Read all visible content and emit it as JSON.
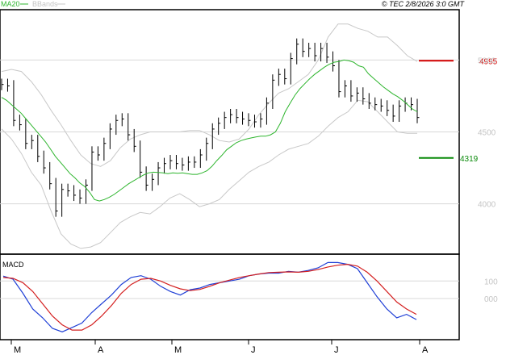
{
  "header": {
    "legend_ma": "MA20",
    "legend_bb": "BBands",
    "copyright": "© TEC 2/8/2026 3:0 GMT"
  },
  "colors": {
    "ma": "#2db52d",
    "bbands": "#c8c8c8",
    "candles": "#000000",
    "macd": "#1f3fd6",
    "signal": "#d42020",
    "resistance": "#d40000",
    "support": "#0a8a0a",
    "grid": "#d8d8d8",
    "axis_text": "#c4c4c4"
  },
  "price_axis": {
    "ticks": [
      {
        "label": "5000",
        "value": 5000
      },
      {
        "label": "4500",
        "value": 4500
      },
      {
        "label": "4000",
        "value": 4000
      }
    ]
  },
  "macd_panel": {
    "label": "MACD",
    "ticks": [
      {
        "label": "100",
        "value": 100
      },
      {
        "label": "000",
        "value": 0
      }
    ]
  },
  "levels": [
    {
      "name": "resistance",
      "label": "4995",
      "value": 4995
    },
    {
      "name": "support",
      "label": "4319",
      "value": 4319
    }
  ],
  "x_axis": {
    "labels": [
      "M",
      "A",
      "M",
      "J",
      "J",
      "A"
    ]
  },
  "chart_data": [
    {
      "type": "line",
      "title": "",
      "x_index": "bar (0-89)",
      "ylim": [
        3650,
        5350
      ],
      "series": [
        {
          "name": "MA20",
          "values": [
            4740,
            4720,
            4690,
            4660,
            4630,
            4590,
            4550,
            4510,
            4470,
            4430,
            4380,
            4330,
            4290,
            4250,
            4210,
            4180,
            4145,
            4120,
            4080,
            4030,
            4020,
            4030,
            4045,
            4065,
            4090,
            4115,
            4140,
            4160,
            4180,
            4200,
            4215,
            4220,
            4218,
            4215,
            4210,
            4215,
            4212,
            4215,
            4210,
            4205,
            4205,
            4215,
            4230,
            4260,
            4300,
            4335,
            4375,
            4400,
            4425,
            4440,
            4450,
            4458,
            4465,
            4470,
            4470,
            4480,
            4500,
            4560,
            4640,
            4700,
            4755,
            4800,
            4835,
            4870,
            4900,
            4925,
            4950,
            4970,
            4985,
            4990,
            5000,
            4995,
            4985,
            4960,
            4950,
            4905,
            4875,
            4845,
            4815,
            4790,
            4765,
            4745,
            4720,
            4690,
            4660,
            4640
          ]
        },
        {
          "name": "BBands upper",
          "values": [
            4920,
            4935,
            4920,
            4850,
            4760,
            4650,
            4550,
            4440,
            4340,
            4280,
            4260,
            4300,
            4390,
            4450,
            4480,
            4500,
            4500,
            4500,
            4500,
            4510,
            4510,
            4480,
            4440,
            4430,
            4450,
            4520,
            4620,
            4700,
            4770,
            4800,
            4850,
            4900,
            5000,
            5160,
            5250,
            5250,
            5220,
            5200,
            5160,
            5160,
            5100,
            5030,
            4990
          ]
        },
        {
          "name": "BBands lower",
          "values": [
            4520,
            4450,
            4350,
            4220,
            4130,
            3950,
            3790,
            3720,
            3690,
            3700,
            3730,
            3800,
            3870,
            3910,
            3940,
            3930,
            3980,
            4040,
            4070,
            4030,
            3980,
            4000,
            4030,
            4100,
            4160,
            4220,
            4260,
            4290,
            4340,
            4380,
            4400,
            4420,
            4470,
            4540,
            4600,
            4640,
            4720,
            4710,
            4640,
            4570,
            4500,
            4490,
            4490
          ]
        },
        {
          "name": "Price",
          "values": [
            4830,
            4820,
            4580,
            4550,
            4420,
            4440,
            4330,
            4250,
            4140,
            3950,
            4100,
            4090,
            4060,
            4040,
            4130,
            4360,
            4340,
            4420,
            4520,
            4580,
            4590,
            4480,
            4400,
            4220,
            4130,
            4170,
            4250,
            4280,
            4300,
            4280,
            4270,
            4290,
            4290,
            4340,
            4420,
            4520,
            4560,
            4600,
            4620,
            4600,
            4590,
            4580,
            4570,
            4590,
            4700,
            4860,
            4900,
            4870,
            5010,
            5110,
            5060,
            5080,
            5030,
            5080,
            5020,
            4960,
            4780,
            4820,
            4750,
            4770,
            4730,
            4700,
            4690,
            4680,
            4650,
            4610,
            4680,
            4700,
            4690,
            4600
          ]
        }
      ]
    },
    {
      "type": "line",
      "title": "MACD",
      "ylim": [
        -230,
        230
      ],
      "series": [
        {
          "name": "MACD",
          "values": [
            128,
            110,
            30,
            -60,
            -110,
            -170,
            -190,
            -165,
            -140,
            -80,
            -30,
            20,
            80,
            120,
            130,
            110,
            70,
            40,
            20,
            50,
            60,
            80,
            90,
            100,
            110,
            130,
            140,
            145,
            145,
            155,
            150,
            160,
            175,
            205,
            205,
            195,
            170,
            90,
            10,
            -60,
            -110,
            -90,
            -120
          ]
        },
        {
          "name": "Signal",
          "values": [
            120,
            115,
            90,
            40,
            -30,
            -100,
            -150,
            -180,
            -180,
            -150,
            -100,
            -40,
            30,
            80,
            110,
            115,
            100,
            75,
            55,
            45,
            52,
            70,
            90,
            105,
            120,
            130,
            140,
            148,
            150,
            152,
            150,
            155,
            165,
            180,
            190,
            195,
            185,
            150,
            100,
            40,
            -20,
            -60,
            -90
          ]
        }
      ]
    }
  ]
}
